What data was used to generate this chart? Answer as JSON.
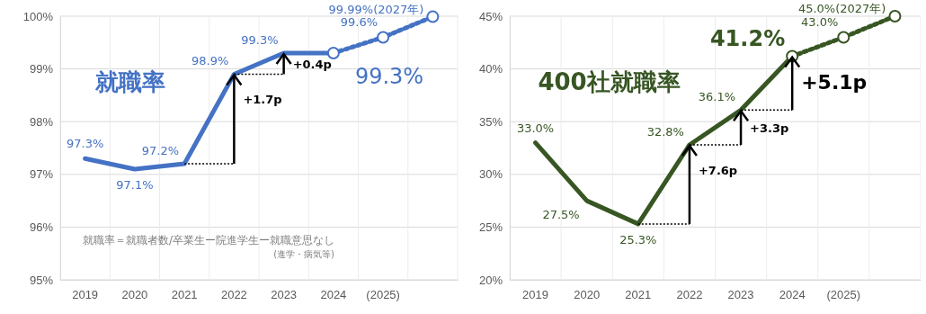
{
  "chart_data": [
    {
      "type": "line",
      "title": "就職率",
      "categories": [
        "2019",
        "2020",
        "2021",
        "2022",
        "2023",
        "2024",
        "(2025)",
        null
      ],
      "ylim": [
        95,
        100
      ],
      "yticks": [
        {
          "value": 95,
          "label": "95%"
        },
        {
          "value": 96,
          "label": "96%"
        },
        {
          "value": 97,
          "label": "97%"
        },
        {
          "value": 98,
          "label": "98%"
        },
        {
          "value": 99,
          "label": "99%"
        },
        {
          "value": 100,
          "label": "100%"
        }
      ],
      "grid": true,
      "series": [
        {
          "color": "#4472c4",
          "values": [
            97.3,
            97.1,
            97.2,
            98.9,
            99.3,
            99.3,
            null,
            null
          ],
          "value_labels": [
            "97.3%",
            "97.1%",
            "97.2%",
            "98.9%",
            "99.3%",
            "99.3%",
            null,
            null
          ],
          "marker": "none",
          "line_style": "solid"
        },
        {
          "color": "#4472c4",
          "values": [
            null,
            null,
            null,
            null,
            null,
            99.3,
            99.6,
            99.99
          ],
          "value_labels": [
            null,
            null,
            null,
            null,
            null,
            null,
            "99.6%",
            "99.99%(2027年)"
          ],
          "marker": "circle",
          "line_style": "dotted"
        }
      ],
      "annotations": [
        {
          "text": "+1.7p",
          "x": "2022",
          "y": 98.9
        },
        {
          "text": "+0.4p",
          "x": "2023",
          "y": 99.3
        },
        "就職率＝就職者数/卒業生ー院進学生ー就職意思なし",
        "(進学・病気等)"
      ]
    },
    {
      "type": "line",
      "title": "400社就職率",
      "categories": [
        "2019",
        "2020",
        "2021",
        "2022",
        "2023",
        "2024",
        "(2025)",
        null
      ],
      "ylim": [
        20,
        45
      ],
      "yticks": [
        {
          "value": 20,
          "label": "20%"
        },
        {
          "value": 25,
          "label": "25%"
        },
        {
          "value": 30,
          "label": "30%"
        },
        {
          "value": 35,
          "label": "35%"
        },
        {
          "value": 40,
          "label": "40%"
        },
        {
          "value": 45,
          "label": "45%"
        }
      ],
      "grid": true,
      "series": [
        {
          "color": "#375623",
          "values": [
            33.0,
            27.5,
            25.3,
            32.8,
            36.1,
            41.2,
            null,
            null
          ],
          "value_labels": [
            "33.0%",
            "27.5%",
            "25.3%",
            "32.8%",
            "36.1%",
            "41.2%",
            null,
            null
          ],
          "marker": "none",
          "line_style": "solid"
        },
        {
          "color": "#375623",
          "values": [
            null,
            null,
            null,
            null,
            null,
            41.2,
            43.0,
            45.0
          ],
          "value_labels": [
            null,
            null,
            null,
            null,
            null,
            null,
            "43.0%",
            "45.0%(2027年)"
          ],
          "marker": "circle",
          "line_style": "dotted"
        }
      ],
      "annotations": [
        {
          "text": "+7.6p",
          "x": "2022",
          "y": 32.8
        },
        {
          "text": "+3.3p",
          "x": "2023",
          "y": 36.1
        },
        {
          "text": "+5.1p",
          "x": "2024",
          "y": 41.2
        }
      ]
    }
  ]
}
